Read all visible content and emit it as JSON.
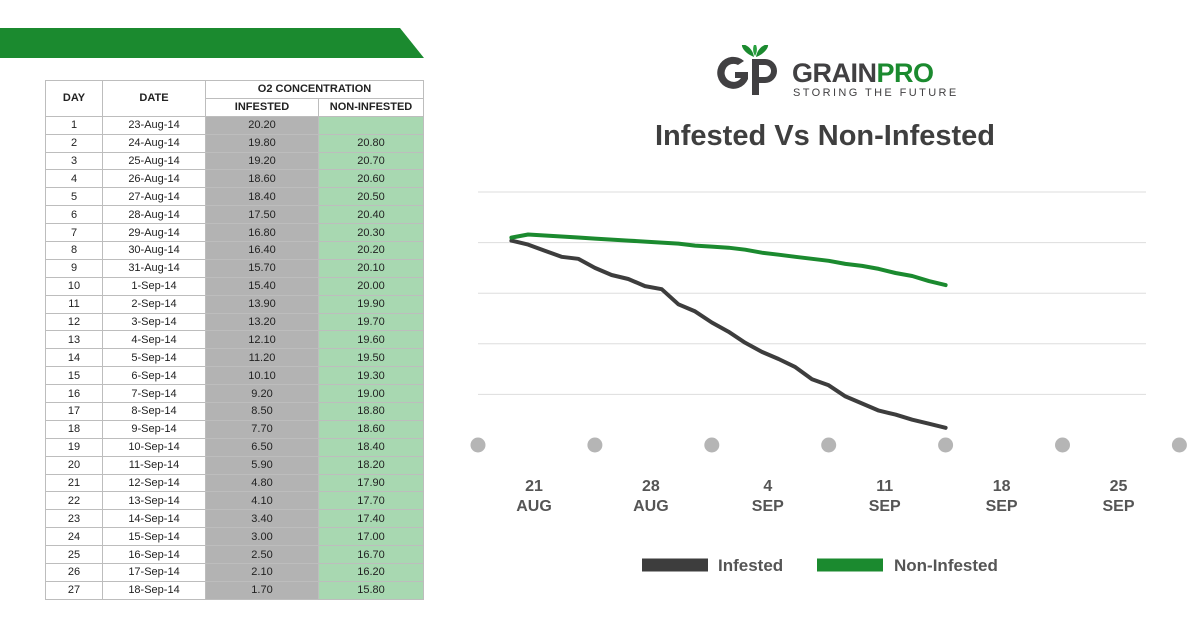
{
  "colors": {
    "brand_green": "#1b8a2f",
    "infested": "#3d3d3d",
    "non_infested": "#1b8a2f",
    "infested_cell": "#b3b3b3",
    "non_infested_cell": "#a8d8b1",
    "grid": "#dddddd",
    "tick_dot": "#b5b5b5"
  },
  "brand": {
    "name_part1": "GRAIN",
    "name_part2": "PRO",
    "tagline": "STORING THE FUTURE",
    "monogram": "GP"
  },
  "table": {
    "headers": {
      "day": "DAY",
      "date": "DATE",
      "o2": "O2 CONCENTRATION",
      "infested": "INFESTED",
      "non_infested": "NON-INFESTED"
    },
    "rows": [
      {
        "day": "1",
        "date": "23-Aug-14",
        "infested": "20.20",
        "non_infested": ""
      },
      {
        "day": "2",
        "date": "24-Aug-14",
        "infested": "19.80",
        "non_infested": "20.80"
      },
      {
        "day": "3",
        "date": "25-Aug-14",
        "infested": "19.20",
        "non_infested": "20.70"
      },
      {
        "day": "4",
        "date": "26-Aug-14",
        "infested": "18.60",
        "non_infested": "20.60"
      },
      {
        "day": "5",
        "date": "27-Aug-14",
        "infested": "18.40",
        "non_infested": "20.50"
      },
      {
        "day": "6",
        "date": "28-Aug-14",
        "infested": "17.50",
        "non_infested": "20.40"
      },
      {
        "day": "7",
        "date": "29-Aug-14",
        "infested": "16.80",
        "non_infested": "20.30"
      },
      {
        "day": "8",
        "date": "30-Aug-14",
        "infested": "16.40",
        "non_infested": "20.20"
      },
      {
        "day": "9",
        "date": "31-Aug-14",
        "infested": "15.70",
        "non_infested": "20.10"
      },
      {
        "day": "10",
        "date": "1-Sep-14",
        "infested": "15.40",
        "non_infested": "20.00"
      },
      {
        "day": "11",
        "date": "2-Sep-14",
        "infested": "13.90",
        "non_infested": "19.90"
      },
      {
        "day": "12",
        "date": "3-Sep-14",
        "infested": "13.20",
        "non_infested": "19.70"
      },
      {
        "day": "13",
        "date": "4-Sep-14",
        "infested": "12.10",
        "non_infested": "19.60"
      },
      {
        "day": "14",
        "date": "5-Sep-14",
        "infested": "11.20",
        "non_infested": "19.50"
      },
      {
        "day": "15",
        "date": "6-Sep-14",
        "infested": "10.10",
        "non_infested": "19.30"
      },
      {
        "day": "16",
        "date": "7-Sep-14",
        "infested": "9.20",
        "non_infested": "19.00"
      },
      {
        "day": "17",
        "date": "8-Sep-14",
        "infested": "8.50",
        "non_infested": "18.80"
      },
      {
        "day": "18",
        "date": "9-Sep-14",
        "infested": "7.70",
        "non_infested": "18.60"
      },
      {
        "day": "19",
        "date": "10-Sep-14",
        "infested": "6.50",
        "non_infested": "18.40"
      },
      {
        "day": "20",
        "date": "11-Sep-14",
        "infested": "5.90",
        "non_infested": "18.20"
      },
      {
        "day": "21",
        "date": "12-Sep-14",
        "infested": "4.80",
        "non_infested": "17.90"
      },
      {
        "day": "22",
        "date": "13-Sep-14",
        "infested": "4.10",
        "non_infested": "17.70"
      },
      {
        "day": "23",
        "date": "14-Sep-14",
        "infested": "3.40",
        "non_infested": "17.40"
      },
      {
        "day": "24",
        "date": "15-Sep-14",
        "infested": "3.00",
        "non_infested": "17.00"
      },
      {
        "day": "25",
        "date": "16-Sep-14",
        "infested": "2.50",
        "non_infested": "16.70"
      },
      {
        "day": "26",
        "date": "17-Sep-14",
        "infested": "2.10",
        "non_infested": "16.20"
      },
      {
        "day": "27",
        "date": "18-Sep-14",
        "infested": "1.70",
        "non_infested": "15.80"
      }
    ]
  },
  "chart_data": {
    "type": "line",
    "title": "Infested Vs Non-Infested",
    "x_ticks": [
      {
        "day": "21",
        "month": "AUG"
      },
      {
        "day": "28",
        "month": "AUG"
      },
      {
        "day": "4",
        "month": "SEP"
      },
      {
        "day": "11",
        "month": "SEP"
      },
      {
        "day": "18",
        "month": "SEP"
      },
      {
        "day": "25",
        "month": "SEP"
      }
    ],
    "x_range": [
      "2014-08-21",
      "2014-09-30"
    ],
    "ylim": [
      0,
      25
    ],
    "grid": true,
    "legend_position": "bottom",
    "x": [
      "2014-08-23",
      "2014-08-24",
      "2014-08-25",
      "2014-08-26",
      "2014-08-27",
      "2014-08-28",
      "2014-08-29",
      "2014-08-30",
      "2014-08-31",
      "2014-09-01",
      "2014-09-02",
      "2014-09-03",
      "2014-09-04",
      "2014-09-05",
      "2014-09-06",
      "2014-09-07",
      "2014-09-08",
      "2014-09-09",
      "2014-09-10",
      "2014-09-11",
      "2014-09-12",
      "2014-09-13",
      "2014-09-14",
      "2014-09-15",
      "2014-09-16",
      "2014-09-17",
      "2014-09-18"
    ],
    "series": [
      {
        "name": "Infested",
        "color": "#3d3d3d",
        "values": [
          20.2,
          19.8,
          19.2,
          18.6,
          18.4,
          17.5,
          16.8,
          16.4,
          15.7,
          15.4,
          13.9,
          13.2,
          12.1,
          11.2,
          10.1,
          9.2,
          8.5,
          7.7,
          6.5,
          5.9,
          4.8,
          4.1,
          3.4,
          3.0,
          2.5,
          2.1,
          1.7
        ]
      },
      {
        "name": "Non-Infested",
        "color": "#1b8a2f",
        "values": [
          null,
          20.8,
          20.7,
          20.6,
          20.5,
          20.4,
          20.3,
          20.2,
          20.1,
          20.0,
          19.9,
          19.7,
          19.6,
          19.5,
          19.3,
          19.0,
          18.8,
          18.6,
          18.4,
          18.2,
          17.9,
          17.7,
          17.4,
          17.0,
          16.7,
          16.2,
          15.8
        ]
      }
    ]
  }
}
